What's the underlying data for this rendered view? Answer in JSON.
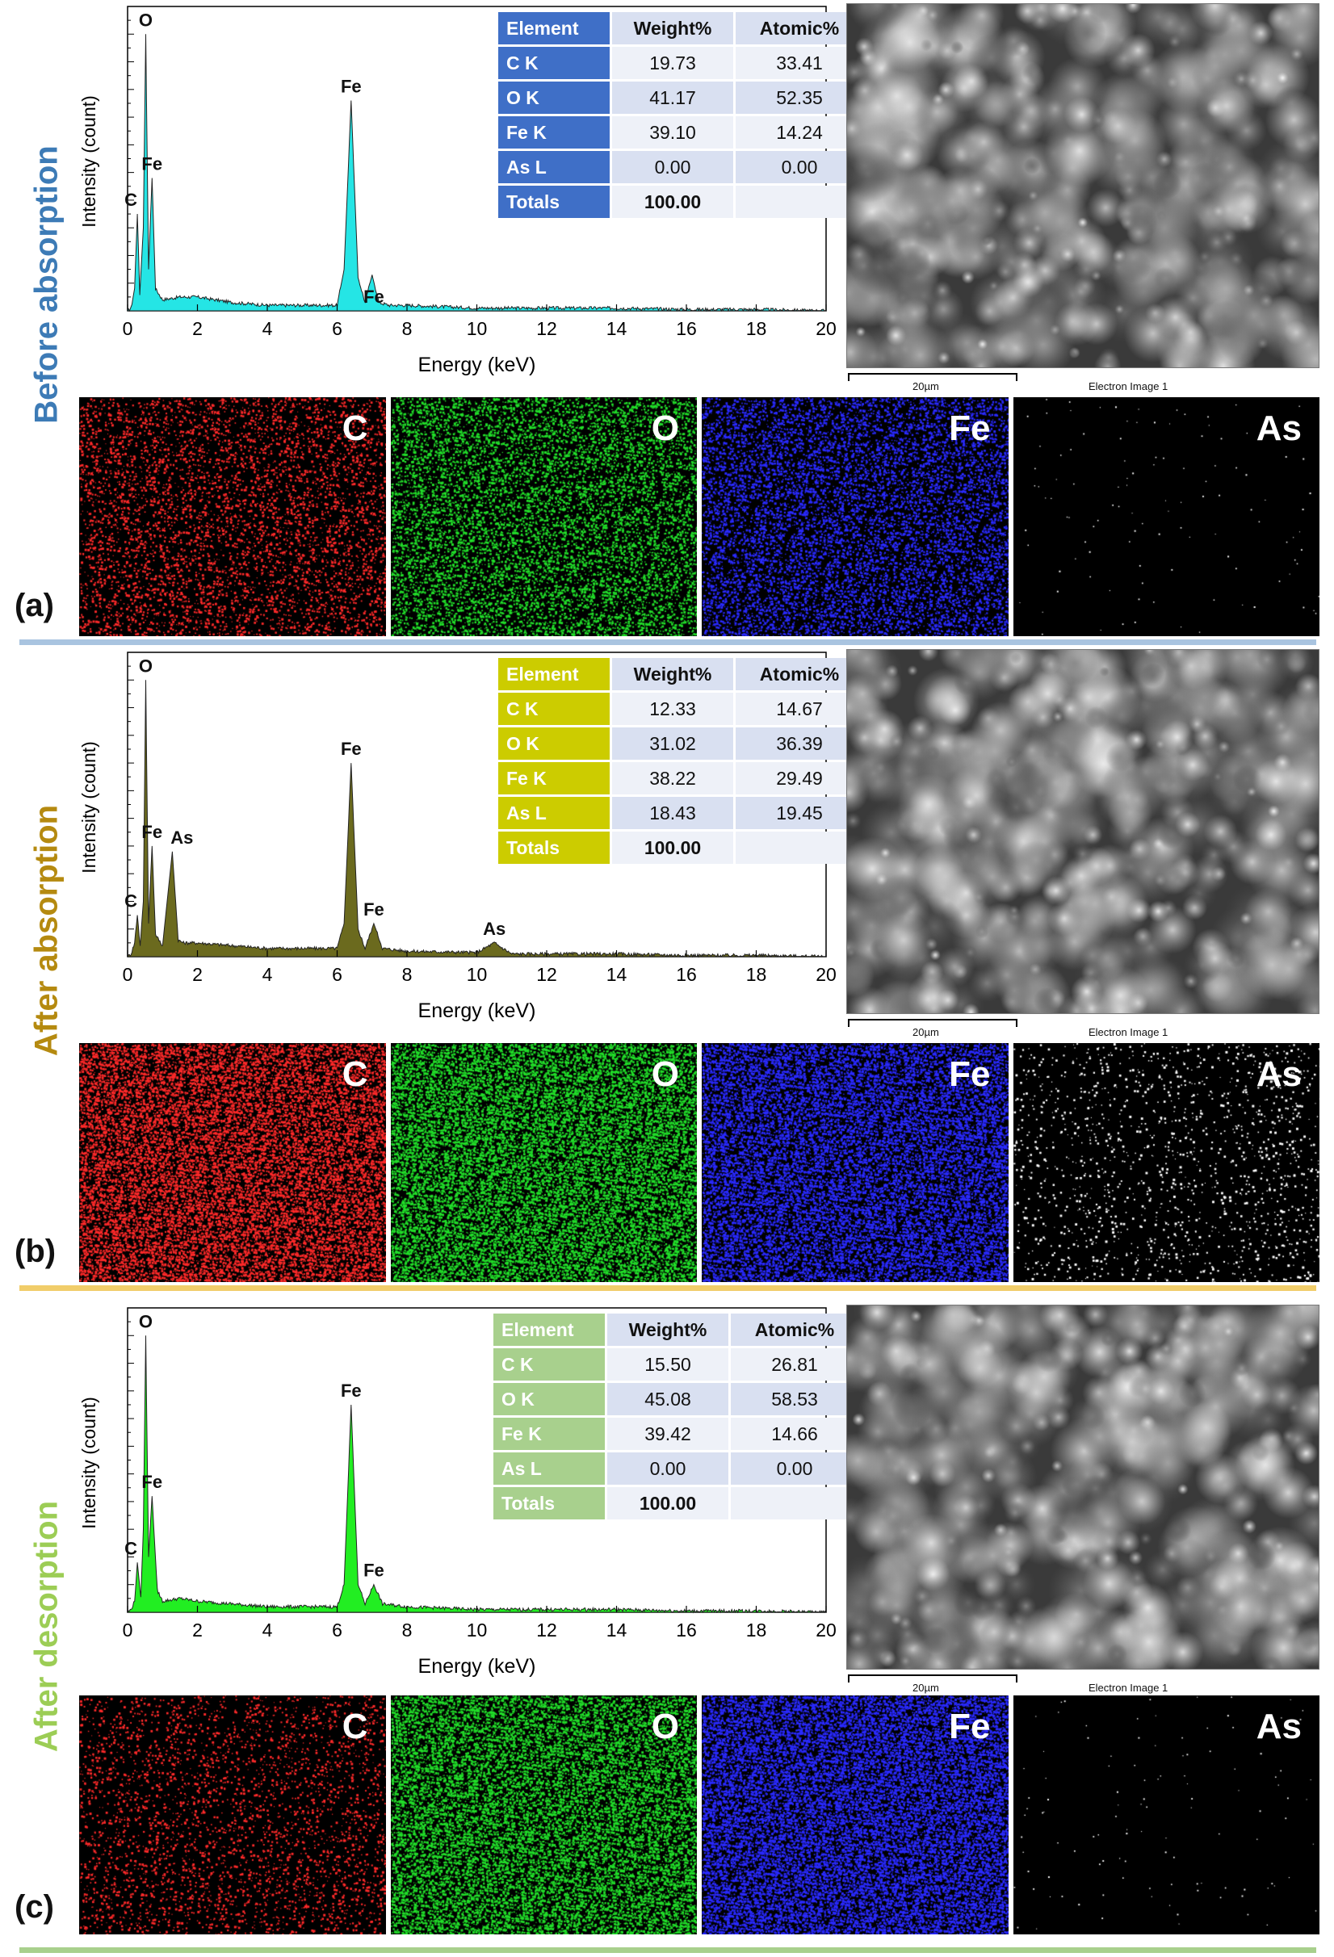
{
  "panels": [
    {
      "letter": "(a)",
      "side_label": "Before absorption",
      "side_color": "#3d7bb6",
      "fill_color": "#25e5e5",
      "header_color": "#3f6fc7",
      "cell_color": "#d9e0f1",
      "sep_color": "#a9c4e0",
      "sem_caption": "Electron Image 1",
      "sem_scale": "20µm",
      "maps": [
        {
          "label": "C",
          "color": "#ff2a2a",
          "density": 0.18
        },
        {
          "label": "O",
          "color": "#22e02a",
          "density": 0.32
        },
        {
          "label": "Fe",
          "color": "#2a2aff",
          "density": 0.34
        },
        {
          "label": "As",
          "color": "#ffffff",
          "density": 0.004
        }
      ],
      "table": {
        "headers": [
          "Element",
          "Weight%",
          "Atomic%"
        ],
        "rows": [
          [
            "C K",
            "19.73",
            "33.41"
          ],
          [
            "O K",
            "41.17",
            "52.35"
          ],
          [
            "Fe K",
            "39.10",
            "14.24"
          ],
          [
            "As L",
            "0.00",
            "0.00"
          ],
          [
            "Totals",
            "100.00",
            ""
          ]
        ]
      }
    },
    {
      "letter": "(b)",
      "side_label": "After absorption",
      "side_color": "#b58a10",
      "fill_color": "#6b6a1e",
      "header_color": "#cccc00",
      "cell_color": "#d9e0f1",
      "sep_color": "#f1cd6a",
      "sem_caption": "Electron Image 1",
      "sem_scale": "20µm",
      "maps": [
        {
          "label": "C",
          "color": "#ff2a2a",
          "density": 0.5
        },
        {
          "label": "O",
          "color": "#22e02a",
          "density": 0.55
        },
        {
          "label": "Fe",
          "color": "#2a2aff",
          "density": 0.55
        },
        {
          "label": "As",
          "color": "#ffffff",
          "density": 0.05
        }
      ],
      "table": {
        "headers": [
          "Element",
          "Weight%",
          "Atomic%"
        ],
        "rows": [
          [
            "C K",
            "12.33",
            "14.67"
          ],
          [
            "O K",
            "31.02",
            "36.39"
          ],
          [
            "Fe K",
            "38.22",
            "29.49"
          ],
          [
            "As L",
            "18.43",
            "19.45"
          ],
          [
            "Totals",
            "100.00",
            ""
          ]
        ]
      }
    },
    {
      "letter": "(c)",
      "side_label": "After desorption",
      "side_color": "#9ccd55",
      "fill_color": "#22ee22",
      "header_color": "#a8d08d",
      "cell_color": "#d9e0f1",
      "sep_color": "#a8d08d",
      "sem_caption": "Electron Image 1",
      "sem_scale": "20µm",
      "maps": [
        {
          "label": "C",
          "color": "#ff2a2a",
          "density": 0.12
        },
        {
          "label": "O",
          "color": "#22e02a",
          "density": 0.5
        },
        {
          "label": "Fe",
          "color": "#2a2aff",
          "density": 0.62
        },
        {
          "label": "As",
          "color": "#ffffff",
          "density": 0.004
        }
      ],
      "table": {
        "headers": [
          "Element",
          "Weight%",
          "Atomic%"
        ],
        "rows": [
          [
            "C K",
            "15.50",
            "26.81"
          ],
          [
            "O K",
            "45.08",
            "58.53"
          ],
          [
            "Fe K",
            "39.42",
            "14.66"
          ],
          [
            "As L",
            "0.00",
            "0.00"
          ],
          [
            "Totals",
            "100.00",
            ""
          ]
        ]
      }
    }
  ],
  "chart_data": [
    {
      "type": "area",
      "xlabel": "Energy (keV)",
      "ylabel": "Intensity (count)",
      "xlim": [
        0,
        20
      ],
      "xticks": [
        0,
        2,
        4,
        6,
        8,
        10,
        12,
        14,
        16,
        18,
        20
      ],
      "series": [
        {
          "x": [
            0,
            0.1,
            0.2,
            0.28,
            0.35,
            0.45,
            0.52,
            0.6,
            0.7,
            0.8,
            1.0,
            1.5,
            2,
            3,
            4,
            5,
            6,
            6.2,
            6.4,
            6.6,
            6.8,
            7.0,
            7.2,
            7.5,
            8,
            10,
            12,
            14,
            16,
            18,
            20
          ],
          "y": [
            0,
            1,
            8,
            35,
            6,
            30,
            100,
            15,
            48,
            8,
            4,
            5,
            5,
            3,
            2,
            2,
            2,
            15,
            76,
            12,
            3,
            13,
            3,
            2,
            2,
            1,
            1,
            1,
            0.5,
            0.5,
            0
          ]
        }
      ],
      "peaks": [
        {
          "label": "C",
          "x": 0.28
        },
        {
          "label": "O",
          "x": 0.52
        },
        {
          "label": "Fe",
          "x": 0.7
        },
        {
          "label": "Fe",
          "x": 6.4
        },
        {
          "label": "Fe",
          "x": 7.05
        }
      ]
    },
    {
      "type": "area",
      "xlabel": "Energy (keV)",
      "ylabel": "Intensity (count)",
      "xlim": [
        0,
        20
      ],
      "xticks": [
        0,
        2,
        4,
        6,
        8,
        10,
        12,
        14,
        16,
        18,
        20
      ],
      "series": [
        {
          "x": [
            0,
            0.1,
            0.2,
            0.28,
            0.36,
            0.45,
            0.52,
            0.6,
            0.7,
            0.8,
            1.0,
            1.28,
            1.45,
            1.6,
            2,
            3,
            4,
            5,
            6,
            6.2,
            6.4,
            6.6,
            6.8,
            7.05,
            7.3,
            8,
            10,
            10.5,
            11,
            12,
            14,
            16,
            18,
            20
          ],
          "y": [
            0,
            1,
            5,
            15,
            4,
            20,
            100,
            12,
            40,
            8,
            4,
            38,
            6,
            5,
            5,
            4,
            3,
            3,
            3,
            12,
            70,
            10,
            3,
            12,
            3,
            2,
            1.5,
            5,
            1,
            1,
            1,
            0.5,
            0.5,
            0
          ]
        }
      ],
      "peaks": [
        {
          "label": "C",
          "x": 0.28
        },
        {
          "label": "O",
          "x": 0.52
        },
        {
          "label": "Fe",
          "x": 0.7
        },
        {
          "label": "As",
          "x": 1.28
        },
        {
          "label": "Fe",
          "x": 6.4
        },
        {
          "label": "Fe",
          "x": 7.05
        },
        {
          "label": "As",
          "x": 10.5
        }
      ]
    },
    {
      "type": "area",
      "xlabel": "Energy (keV)",
      "ylabel": "Intensity (count)",
      "xlim": [
        0,
        20
      ],
      "xticks": [
        0,
        2,
        4,
        6,
        8,
        10,
        12,
        14,
        16,
        18,
        20
      ],
      "series": [
        {
          "x": [
            0,
            0.1,
            0.2,
            0.28,
            0.38,
            0.45,
            0.52,
            0.6,
            0.7,
            0.85,
            1.0,
            1.5,
            2,
            3,
            4,
            5,
            6,
            6.2,
            6.4,
            6.6,
            6.8,
            7.05,
            7.3,
            8,
            10,
            12,
            14,
            16,
            18,
            20
          ],
          "y": [
            0,
            1,
            4,
            18,
            5,
            30,
            100,
            20,
            42,
            8,
            4,
            5,
            4,
            3,
            2,
            2,
            2,
            10,
            75,
            10,
            3,
            10,
            3,
            2,
            1,
            1,
            1,
            0.5,
            0.5,
            0
          ]
        }
      ],
      "peaks": [
        {
          "label": "C",
          "x": 0.28
        },
        {
          "label": "O",
          "x": 0.52
        },
        {
          "label": "Fe",
          "x": 0.7
        },
        {
          "label": "Fe",
          "x": 6.4
        },
        {
          "label": "Fe",
          "x": 7.05
        }
      ]
    }
  ]
}
